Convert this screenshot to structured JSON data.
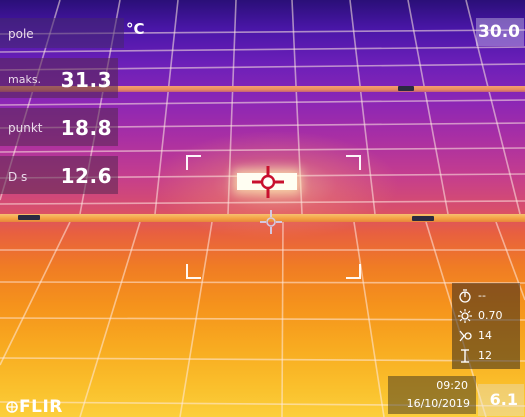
{
  "scale": {
    "unit": "°C",
    "max": "30.0",
    "min": "6.1"
  },
  "measurements": {
    "field": {
      "label": "pole"
    },
    "max": {
      "label": "maks.",
      "value": "31.3"
    },
    "point": {
      "label": "punkt",
      "value": "18.8"
    },
    "delta": {
      "label": "D s",
      "value": "12.6"
    }
  },
  "parameters": {
    "items": [
      {
        "icon": "timer-icon",
        "value": "--"
      },
      {
        "icon": "emissivity-icon",
        "value": "0.70"
      },
      {
        "icon": "reflected-temp-icon",
        "value": "14"
      },
      {
        "icon": "distance-icon",
        "value": "12"
      }
    ]
  },
  "status": {
    "time": "09:20",
    "date": "16/10/2019"
  },
  "brand": {
    "logo": "FLIR"
  },
  "colors": {
    "hot": "#fffef2",
    "cold": "#2a0f78",
    "warm": "#f5921c",
    "crosshair": "#c8102e"
  }
}
